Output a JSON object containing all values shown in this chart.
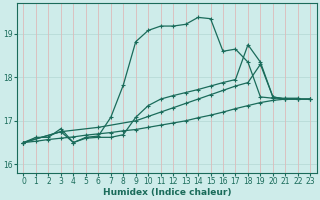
{
  "xlabel": "Humidex (Indice chaleur)",
  "bg_color": "#ceecea",
  "grid_color_h": "#b8dbd8",
  "grid_color_v": "#ddbaba",
  "line_color": "#1a6b5a",
  "xlim": [
    -0.5,
    23.5
  ],
  "ylim": [
    15.8,
    19.7
  ],
  "yticks": [
    16,
    17,
    18,
    19
  ],
  "xticks": [
    0,
    1,
    2,
    3,
    4,
    5,
    6,
    7,
    8,
    9,
    10,
    11,
    12,
    13,
    14,
    15,
    16,
    17,
    18,
    19,
    20,
    21,
    22,
    23
  ],
  "line1_x": [
    0,
    1,
    2,
    3,
    4,
    5,
    6,
    7,
    8,
    9,
    10,
    11,
    12,
    13,
    14,
    15,
    16,
    17,
    18,
    19,
    20,
    21,
    22
  ],
  "line1_y": [
    16.5,
    16.62,
    16.62,
    16.82,
    16.5,
    16.62,
    16.65,
    17.08,
    17.82,
    18.82,
    19.08,
    19.18,
    19.18,
    19.22,
    19.38,
    19.35,
    18.6,
    18.65,
    18.35,
    17.55,
    17.52,
    17.52,
    17.52
  ],
  "line2_x": [
    0,
    3,
    6,
    9,
    10,
    11,
    12,
    13,
    14,
    15,
    16,
    17,
    18,
    19,
    20,
    21,
    22,
    23
  ],
  "line2_y": [
    16.5,
    16.75,
    16.85,
    17.0,
    17.1,
    17.2,
    17.3,
    17.4,
    17.5,
    17.6,
    17.7,
    17.8,
    17.88,
    18.3,
    17.55,
    17.5,
    17.5,
    17.5
  ],
  "line3_x": [
    0,
    1,
    2,
    3,
    4,
    5,
    6,
    7,
    8,
    9,
    10,
    11,
    12,
    13,
    14,
    15,
    16,
    17,
    18,
    19,
    20,
    21,
    22,
    23
  ],
  "line3_y": [
    16.5,
    16.53,
    16.57,
    16.6,
    16.63,
    16.67,
    16.7,
    16.73,
    16.77,
    16.8,
    16.85,
    16.9,
    16.95,
    17.0,
    17.07,
    17.13,
    17.2,
    17.28,
    17.35,
    17.42,
    17.47,
    17.5,
    17.5,
    17.5
  ],
  "line4_x": [
    0,
    3,
    4,
    5,
    6,
    7,
    8,
    9,
    10,
    11,
    12,
    13,
    14,
    15,
    16,
    17,
    18,
    19,
    20,
    21,
    22,
    23
  ],
  "line4_y": [
    16.5,
    16.75,
    16.5,
    16.6,
    16.62,
    16.62,
    16.68,
    17.08,
    17.35,
    17.5,
    17.58,
    17.65,
    17.72,
    17.8,
    17.88,
    17.95,
    18.75,
    18.35,
    17.55,
    17.5,
    17.5,
    17.5
  ],
  "marker": "+",
  "markersize": 3.5,
  "markeredgewidth": 0.8,
  "linewidth": 0.9,
  "title_fontsize": 7,
  "xlabel_fontsize": 6.5,
  "tick_fontsize": 5.5
}
